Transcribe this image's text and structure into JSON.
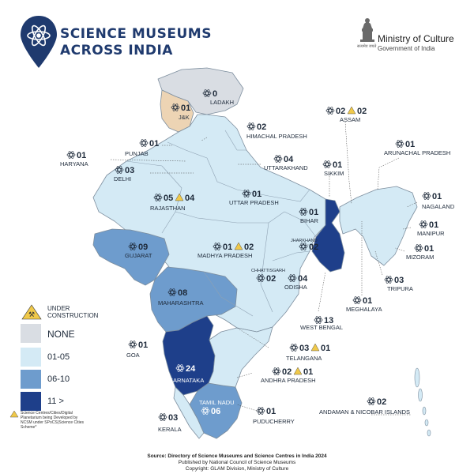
{
  "header": {
    "title_line1": "SCIENCE MUSEUMS",
    "title_line2": "ACROSS INDIA",
    "ministry": "Ministry of Culture",
    "government": "Government of India",
    "emblem_caption": "सत्यमेव जयते"
  },
  "legend": {
    "under_construction": "UNDER CONSTRUCTION",
    "none": "NONE",
    "range1": "01-05",
    "range2": "06-10",
    "range3": "11 >",
    "colors": {
      "none": "#d9dde3",
      "range1": "#d4eaf5",
      "range2": "#6e9ccd",
      "range3": "#1e3f8a",
      "jk": "#edd4b4"
    }
  },
  "footnote": "Science Centres/Cities/Digital Planetarium being Developed by NCSM under SPoCS(Science Cities Scheme*",
  "source": {
    "line1": "Source: Directory of Science Museums and Science Centres in India 2024",
    "line2": "Published by National Council of Science Museums",
    "line3": "Copyright: GLAM Division, Ministry of Culture"
  },
  "states": [
    {
      "name": "LADAKH",
      "count": "0"
    },
    {
      "name": "J&K",
      "count": "01"
    },
    {
      "name": "HIMACHAL PRADESH",
      "count": "02"
    },
    {
      "name": "PUNJAB",
      "count": "01"
    },
    {
      "name": "HARYANA",
      "count": "01"
    },
    {
      "name": "UTTARAKHAND",
      "count": "04"
    },
    {
      "name": "DELHI",
      "count": "03"
    },
    {
      "name": "RAJASTHAN",
      "count": "05",
      "under_construction": "04"
    },
    {
      "name": "UTTAR PRADESH",
      "count": "01"
    },
    {
      "name": "BIHAR",
      "count": "01"
    },
    {
      "name": "SIKKIM",
      "count": "01"
    },
    {
      "name": "ASSAM",
      "count": "02",
      "under_construction": "02"
    },
    {
      "name": "ARUNACHAL PRADESH",
      "count": "01"
    },
    {
      "name": "NAGALAND",
      "count": "01"
    },
    {
      "name": "MANIPUR",
      "count": "01"
    },
    {
      "name": "MIZORAM",
      "count": "01"
    },
    {
      "name": "TRIPURA",
      "count": "03"
    },
    {
      "name": "MEGHALAYA",
      "count": "01"
    },
    {
      "name": "JHARKHAND",
      "count": "02"
    },
    {
      "name": "WEST BENGAL",
      "count": "13"
    },
    {
      "name": "ODISHA",
      "count": "04"
    },
    {
      "name": "CHHATTISGARH",
      "count": "02"
    },
    {
      "name": "MADHYA PRADESH",
      "count": "01",
      "under_construction": "02"
    },
    {
      "name": "GUJARAT",
      "count": "09"
    },
    {
      "name": "MAHARASHTRA",
      "count": "08"
    },
    {
      "name": "GOA",
      "count": "01"
    },
    {
      "name": "TELANGANA",
      "count": "03",
      "under_construction": "01"
    },
    {
      "name": "ANDHRA PRADESH",
      "count": "02",
      "under_construction": "01"
    },
    {
      "name": "KARNATAKA",
      "count": "24"
    },
    {
      "name": "TAMIL NADU",
      "count": "06"
    },
    {
      "name": "PUDUCHERRY",
      "count": "01"
    },
    {
      "name": "KERALA",
      "count": "03"
    },
    {
      "name": "ANDAMAN & NICOBAR ISLANDS",
      "count": "02"
    }
  ]
}
